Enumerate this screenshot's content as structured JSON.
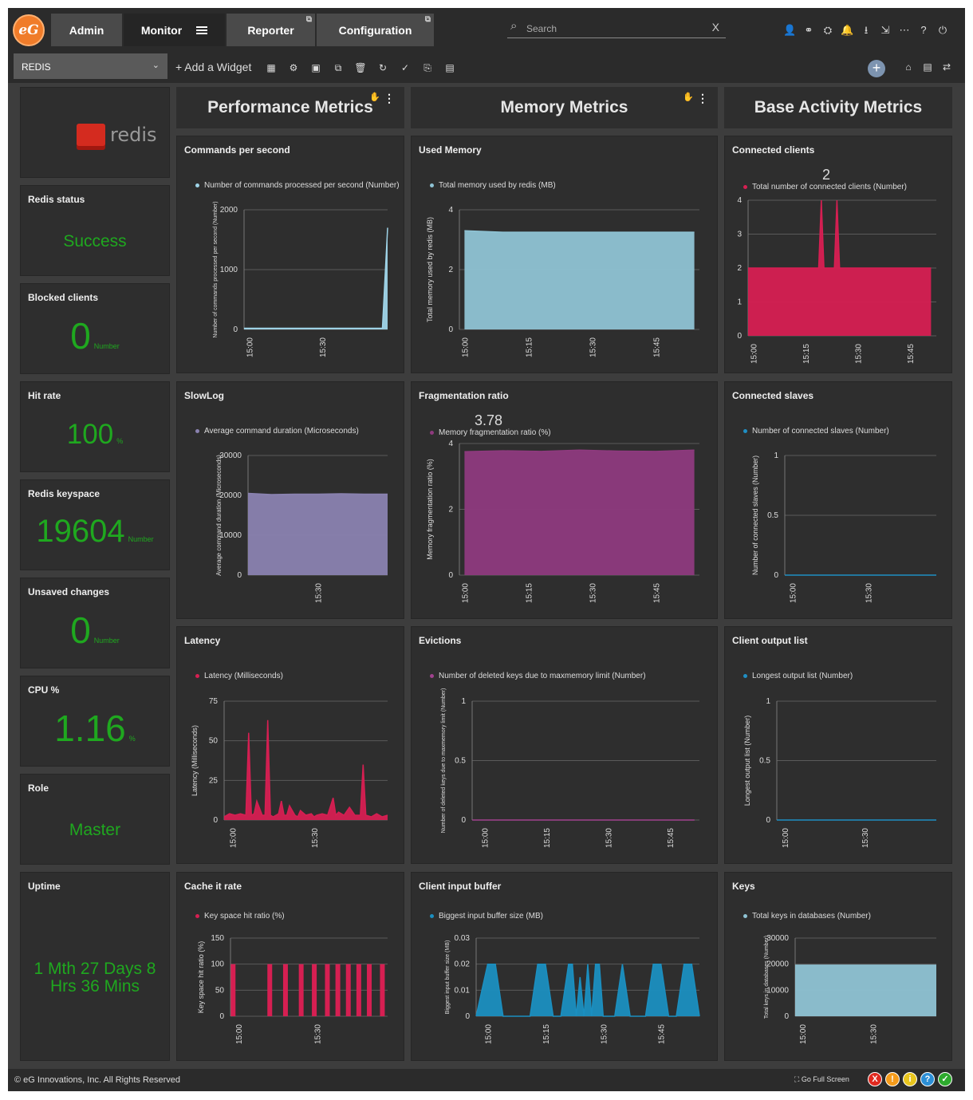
{
  "app": {
    "logo_text": "eG",
    "tabs": [
      {
        "label": "Admin"
      },
      {
        "label": "Monitor"
      },
      {
        "label": "Reporter"
      },
      {
        "label": "Configuration"
      }
    ],
    "search_placeholder": "Search",
    "search_clear": "X"
  },
  "toolbar": {
    "selected_component": "REDIS",
    "add_widget_label": "+ Add a Widget"
  },
  "sections": {
    "performance": "Performance Metrics",
    "memory": "Memory Metrics",
    "activity": "Base Activity Metrics"
  },
  "kpis": {
    "logo_text": "redis",
    "status": {
      "title": "Redis status",
      "value": "Success"
    },
    "blocked": {
      "title": "Blocked clients",
      "value": "0",
      "unit": "Number"
    },
    "hitrate": {
      "title": "Hit rate",
      "value": "100",
      "unit": "%"
    },
    "keyspace": {
      "title": "Redis keyspace",
      "value": "19604",
      "unit": "Number"
    },
    "unsaved": {
      "title": "Unsaved changes",
      "value": "0",
      "unit": "Number"
    },
    "cpu": {
      "title": "CPU %",
      "value": "1.16",
      "unit": "%"
    },
    "role": {
      "title": "Role",
      "value": "Master"
    },
    "uptime": {
      "title": "Uptime",
      "value": "1 Mth 27 Days 8 Hrs 36 Mins"
    }
  },
  "chart_data": [
    {
      "id": "cmds",
      "title": "Commands per second",
      "type": "area",
      "legend": "Number of commands processed per second (Number)",
      "ylabel": "Number of commands processed per second (Number)",
      "color": "#9fd4e8",
      "ylim": [
        0,
        2000
      ],
      "yticks": [
        0,
        1000,
        2000
      ],
      "x": [
        0,
        2,
        4,
        6,
        8,
        10,
        12,
        14,
        16,
        18,
        20,
        22,
        24,
        26,
        28,
        30,
        32,
        34,
        36,
        38,
        40,
        42,
        44,
        46,
        48,
        50,
        52,
        53,
        55
      ],
      "values": [
        20,
        20,
        20,
        20,
        20,
        20,
        20,
        20,
        20,
        20,
        20,
        20,
        20,
        20,
        20,
        20,
        20,
        20,
        20,
        20,
        20,
        20,
        20,
        20,
        20,
        20,
        20,
        20,
        1700
      ],
      "xticks": [
        {
          "v": 2,
          "label": "15:00"
        },
        {
          "v": 30,
          "label": "15:30"
        }
      ],
      "xlim": [
        0,
        55
      ]
    },
    {
      "id": "usedmem",
      "title": "Used Memory",
      "type": "area",
      "legend": "Total memory used by redis (MB)",
      "ylabel": "Total memory used by redis (MB)",
      "color": "#8fc3d4",
      "ylim": [
        0,
        4
      ],
      "yticks": [
        0,
        2,
        4
      ],
      "x": [
        0,
        15,
        30,
        45,
        60,
        75,
        90
      ],
      "values": [
        3.3,
        3.25,
        3.25,
        3.25,
        3.25,
        3.25,
        3.25
      ],
      "xticks": [
        {
          "v": 0,
          "label": "15:00"
        },
        {
          "v": 25,
          "label": "15:15"
        },
        {
          "v": 50,
          "label": "15:30"
        },
        {
          "v": 75,
          "label": "15:45"
        }
      ],
      "xlim": [
        -2,
        92
      ]
    },
    {
      "id": "connclients",
      "title": "Connected clients",
      "type": "area",
      "legend": "Total number of connected clients (Number)",
      "bigval": "2",
      "color": "#d61f52",
      "ylim": [
        0,
        4
      ],
      "yticks": [
        0,
        1,
        2,
        3,
        4
      ],
      "x": [
        0,
        25,
        27,
        28,
        29,
        31,
        33,
        34,
        35,
        37,
        70
      ],
      "values": [
        2,
        2,
        2,
        4,
        2,
        2,
        2,
        4,
        2,
        2,
        2
      ],
      "xticks": [
        {
          "v": 2,
          "label": "15:00"
        },
        {
          "v": 22,
          "label": "15:15"
        },
        {
          "v": 42,
          "label": "15:30"
        },
        {
          "v": 62,
          "label": "15:45"
        }
      ],
      "xlim": [
        0,
        72
      ]
    },
    {
      "id": "slowlog",
      "title": "SlowLog",
      "type": "area",
      "legend": "Average command duration (Microseconds)",
      "ylabel": "Average command duration (Microseconds)",
      "color": "#8a82b0",
      "ylim": [
        0,
        30000
      ],
      "yticks": [
        0,
        10000,
        20000,
        30000
      ],
      "x": [
        0,
        10,
        20,
        30,
        40,
        50,
        60
      ],
      "values": [
        20500,
        20200,
        20300,
        20300,
        20400,
        20300,
        20300
      ],
      "xticks": [
        {
          "v": 30,
          "label": "15:30"
        }
      ],
      "xlim": [
        0,
        60
      ]
    },
    {
      "id": "frag",
      "title": "Fragmentation ratio",
      "type": "area",
      "legend": "Memory fragmentation ratio (%)",
      "ylabel": "Memory fragmentation ratio (%)",
      "bigval": "3.78",
      "color": "#8e3a7e",
      "ylim": [
        0,
        4
      ],
      "yticks": [
        0,
        2,
        4
      ],
      "x": [
        0,
        15,
        30,
        45,
        60,
        75,
        90
      ],
      "values": [
        3.75,
        3.78,
        3.76,
        3.8,
        3.77,
        3.76,
        3.8
      ],
      "xticks": [
        {
          "v": 0,
          "label": "15:00"
        },
        {
          "v": 25,
          "label": "15:15"
        },
        {
          "v": 50,
          "label": "15:30"
        },
        {
          "v": 75,
          "label": "15:45"
        }
      ],
      "xlim": [
        -2,
        92
      ]
    },
    {
      "id": "slaves",
      "title": "Connected slaves",
      "type": "line",
      "legend": "Number of connected slaves (Number)",
      "ylabel": "Number of connected slaves (Number)",
      "color": "#1f8fc4",
      "ylim": [
        0,
        1
      ],
      "yticks": [
        0,
        0.5,
        1
      ],
      "x": [
        0,
        60
      ],
      "values": [
        0,
        0
      ],
      "xticks": [
        {
          "v": 3,
          "label": "15:00"
        },
        {
          "v": 33,
          "label": "15:30"
        }
      ],
      "xlim": [
        0,
        60
      ]
    },
    {
      "id": "latency",
      "title": "Latency",
      "type": "area",
      "legend": "Latency (Milliseconds)",
      "ylabel": "Latency (Milliseconds)",
      "color": "#d61f52",
      "ylim": [
        0,
        75
      ],
      "yticks": [
        0,
        25,
        50,
        75
      ],
      "x": [
        0,
        2,
        4,
        6,
        8,
        9,
        10,
        11,
        12,
        14,
        15,
        16,
        17,
        18,
        20,
        21,
        22,
        23,
        24,
        26,
        27,
        28,
        30,
        32,
        33,
        34,
        36,
        38,
        40,
        41,
        42,
        44,
        46,
        48,
        50,
        51,
        52,
        54,
        56,
        58,
        60
      ],
      "values": [
        2,
        4,
        3,
        4,
        3,
        55,
        3,
        4,
        12,
        3,
        3,
        63,
        3,
        2,
        4,
        12,
        3,
        3,
        9,
        3,
        2,
        6,
        3,
        4,
        2,
        3,
        4,
        3,
        14,
        3,
        5,
        3,
        8,
        3,
        3,
        35,
        3,
        2,
        4,
        2,
        3
      ],
      "xticks": [
        {
          "v": 3,
          "label": "15:00"
        },
        {
          "v": 33,
          "label": "15:30"
        }
      ],
      "xlim": [
        0,
        60
      ]
    },
    {
      "id": "evictions",
      "title": "Evictions",
      "type": "line",
      "legend": "Number of deleted keys due to maxmemory limit (Number)",
      "ylabel": "Number of deleted keys due to maxmemory limit (Number)",
      "color": "#a0428e",
      "ylim": [
        0,
        1
      ],
      "yticks": [
        0,
        0.5,
        1
      ],
      "x": [
        0,
        90
      ],
      "values": [
        0,
        0
      ],
      "xticks": [
        {
          "v": 5,
          "label": "15:00"
        },
        {
          "v": 30,
          "label": "15:15"
        },
        {
          "v": 55,
          "label": "15:30"
        },
        {
          "v": 80,
          "label": "15:45"
        }
      ],
      "xlim": [
        0,
        92
      ]
    },
    {
      "id": "clientout",
      "title": "Client output list",
      "type": "line",
      "legend": "Longest output list (Number)",
      "ylabel": "Longest output list (Number)",
      "color": "#1f8fc4",
      "ylim": [
        0,
        1
      ],
      "yticks": [
        0,
        0.5,
        1
      ],
      "x": [
        0,
        60
      ],
      "values": [
        0,
        0
      ],
      "xticks": [
        {
          "v": 3,
          "label": "15:00"
        },
        {
          "v": 33,
          "label": "15:30"
        }
      ],
      "xlim": [
        0,
        60
      ]
    },
    {
      "id": "cachehit",
      "title": "Cache it rate",
      "type": "bar",
      "legend": "Key space hit ratio (%)",
      "ylabel": "Key space hit ratio (%)",
      "color": "#d61f52",
      "ylim": [
        0,
        150
      ],
      "yticks": [
        0,
        50,
        100,
        150
      ],
      "x": [
        1,
        15,
        21,
        27,
        32,
        37,
        41,
        45,
        49,
        53,
        58
      ],
      "values": [
        100,
        100,
        100,
        100,
        100,
        100,
        100,
        100,
        100,
        100,
        100
      ],
      "xticks": [
        {
          "v": 3,
          "label": "15:00"
        },
        {
          "v": 33,
          "label": "15:30"
        }
      ],
      "xlim": [
        0,
        60
      ]
    },
    {
      "id": "clientin",
      "title": "Client input buffer",
      "type": "area",
      "legend": "Biggest input buffer size (MB)",
      "ylabel": "Biggest input buffer size (MB)",
      "color": "#1b8fc0",
      "ylim": [
        0,
        0.03
      ],
      "yticks": [
        0,
        0.01,
        0.02,
        0.03
      ],
      "x": [
        0,
        3,
        5,
        7,
        9,
        14,
        16,
        18,
        20,
        22,
        24,
        25,
        26,
        27,
        28,
        29,
        30,
        31,
        32,
        33,
        34,
        36,
        38,
        40,
        43,
        44,
        46,
        48,
        50,
        52,
        54,
        56,
        58
      ],
      "values": [
        0,
        0.02,
        0.02,
        0,
        0,
        0,
        0.02,
        0.02,
        0,
        0,
        0.02,
        0.02,
        0,
        0.015,
        0,
        0.02,
        0,
        0.02,
        0.02,
        0,
        0,
        0,
        0.02,
        0,
        0,
        0,
        0.02,
        0.02,
        0,
        0,
        0.02,
        0.02,
        0
      ],
      "xticks": [
        {
          "v": 3,
          "label": "15:00"
        },
        {
          "v": 18,
          "label": "15:15"
        },
        {
          "v": 33,
          "label": "15:30"
        },
        {
          "v": 48,
          "label": "15:45"
        }
      ],
      "xlim": [
        0,
        58
      ]
    },
    {
      "id": "keys",
      "title": "Keys",
      "type": "area",
      "legend": "Total keys in databases (Number)",
      "ylabel": "Total keys in databases (Number)",
      "color": "#8fc3d4",
      "ylim": [
        0,
        30000
      ],
      "yticks": [
        0,
        10000,
        20000,
        30000
      ],
      "x": [
        0,
        60
      ],
      "values": [
        19604,
        19604
      ],
      "xticks": [
        {
          "v": 3,
          "label": "15:00"
        },
        {
          "v": 33,
          "label": "15:30"
        }
      ],
      "xlim": [
        0,
        60
      ]
    }
  ],
  "footer": {
    "copyright": "© eG Innovations, Inc. All Rights Reserved",
    "fullscreen": "Go Full Screen",
    "status_icons": [
      "X",
      "!",
      "i",
      "?",
      "✓"
    ],
    "status_colors": [
      "#e0291f",
      "#f49b1b",
      "#e8c51e",
      "#2c8fd6",
      "#2eaa2e"
    ]
  }
}
